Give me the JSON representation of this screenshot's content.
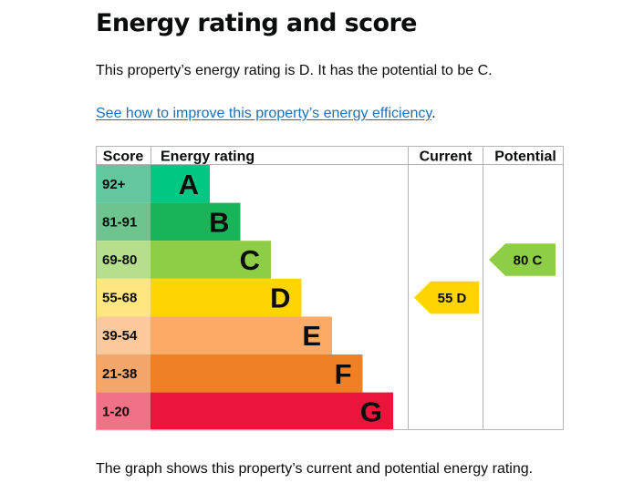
{
  "page": {
    "title": "Energy rating and score",
    "summary": "This property’s energy rating is D. It has the potential to be C.",
    "improve_link": "See how to improve this property’s energy efficiency",
    "improve_link_suffix": ".",
    "footnote": "The graph shows this property’s current and potential energy rating."
  },
  "graph": {
    "headers": {
      "score": "Score",
      "rating": "Energy rating",
      "current": "Current",
      "potential": "Potential"
    },
    "bands": [
      {
        "score": "92+",
        "letter": "A",
        "color": "#00c781",
        "score_bg": "#64c7a0",
        "min": 92
      },
      {
        "score": "81-91",
        "letter": "B",
        "color": "#19b459",
        "score_bg": "#6dc48e",
        "min": 81
      },
      {
        "score": "69-80",
        "letter": "C",
        "color": "#8dce46",
        "score_bg": "#b6df8c",
        "min": 69
      },
      {
        "score": "55-68",
        "letter": "D",
        "color": "#ffd500",
        "score_bg": "#ffe680",
        "min": 55
      },
      {
        "score": "39-54",
        "letter": "E",
        "color": "#fcaa65",
        "score_bg": "#fdc99c",
        "min": 39
      },
      {
        "score": "21-38",
        "letter": "F",
        "color": "#ef8023",
        "score_bg": "#f3a66a",
        "min": 21
      },
      {
        "score": "1-20",
        "letter": "G",
        "color": "#e9153b",
        "score_bg": "#f07287",
        "min": 1
      }
    ],
    "current": {
      "score": 55,
      "letter": "D",
      "label": "55 D",
      "color": "#ffd500"
    },
    "potential": {
      "score": 80,
      "letter": "C",
      "label": "80 C",
      "color": "#8dce46"
    }
  }
}
